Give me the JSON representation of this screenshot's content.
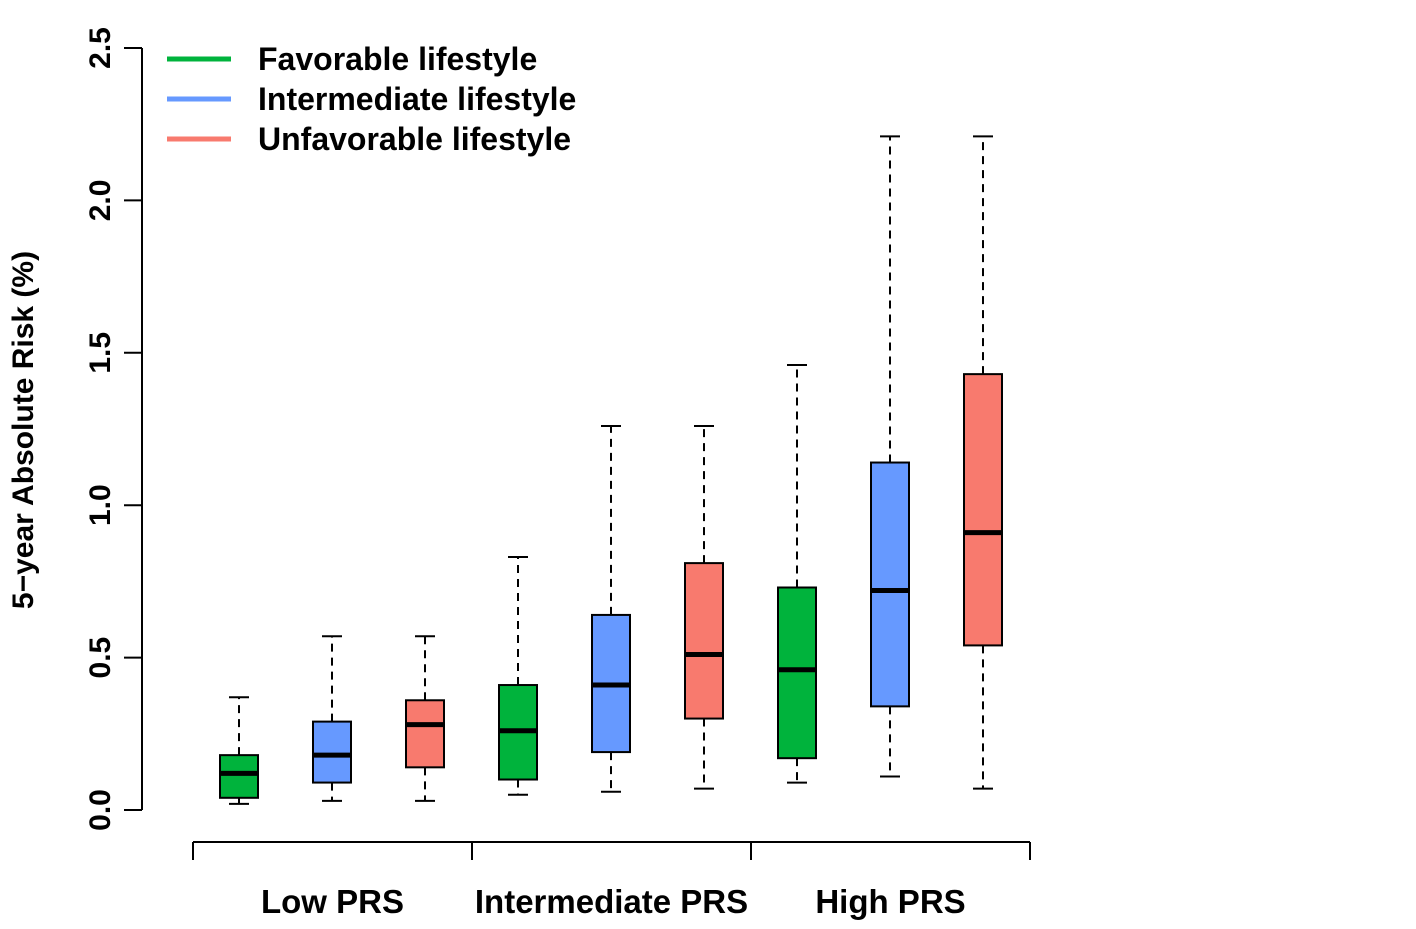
{
  "chart_data": {
    "type": "boxplot",
    "ylabel": "5−year Absolute Risk (%)",
    "ylim": [
      0,
      2.5
    ],
    "yticks": [
      "0.0",
      "0.5",
      "1.0",
      "1.5",
      "2.0",
      "2.5"
    ],
    "groups": [
      "Low PRS",
      "Intermediate PRS",
      "High PRS"
    ],
    "legend_position": "top-left",
    "series": [
      {
        "name": "Favorable lifestyle",
        "color": "#00B33C"
      },
      {
        "name": "Intermediate lifestyle",
        "color": "#6699FF"
      },
      {
        "name": "Unfavorable lifestyle",
        "color": "#F87A6E"
      }
    ],
    "boxes": [
      {
        "group": 0,
        "series": 0,
        "min": 0.02,
        "q1": 0.04,
        "median": 0.12,
        "q3": 0.18,
        "max": 0.37
      },
      {
        "group": 0,
        "series": 1,
        "min": 0.03,
        "q1": 0.09,
        "median": 0.18,
        "q3": 0.29,
        "max": 0.57
      },
      {
        "group": 0,
        "series": 2,
        "min": 0.03,
        "q1": 0.14,
        "median": 0.28,
        "q3": 0.36,
        "max": 0.57
      },
      {
        "group": 1,
        "series": 0,
        "min": 0.05,
        "q1": 0.1,
        "median": 0.26,
        "q3": 0.41,
        "max": 0.83
      },
      {
        "group": 1,
        "series": 1,
        "min": 0.06,
        "q1": 0.19,
        "median": 0.41,
        "q3": 0.64,
        "max": 1.26
      },
      {
        "group": 1,
        "series": 2,
        "min": 0.07,
        "q1": 0.3,
        "median": 0.51,
        "q3": 0.81,
        "max": 1.26
      },
      {
        "group": 2,
        "series": 0,
        "min": 0.09,
        "q1": 0.17,
        "median": 0.46,
        "q3": 0.73,
        "max": 1.46
      },
      {
        "group": 2,
        "series": 1,
        "min": 0.11,
        "q1": 0.34,
        "median": 0.72,
        "q3": 1.14,
        "max": 2.21
      },
      {
        "group": 2,
        "series": 2,
        "min": 0.07,
        "q1": 0.54,
        "median": 0.91,
        "q3": 1.43,
        "max": 2.21
      }
    ]
  }
}
